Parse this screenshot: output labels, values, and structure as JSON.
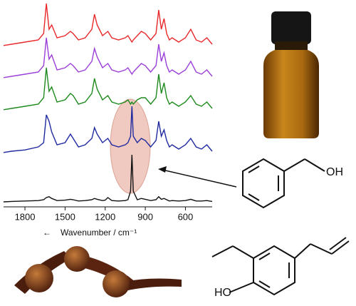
{
  "chart_data": {
    "type": "line",
    "x": [
      1960,
      1900,
      1800,
      1700,
      1660,
      1640,
      1620,
      1600,
      1560,
      1500,
      1460,
      1440,
      1400,
      1350,
      1300,
      1280,
      1260,
      1220,
      1200,
      1180,
      1150,
      1100,
      1050,
      1030,
      1010,
      1000,
      990,
      960,
      930,
      900,
      860,
      820,
      800,
      780,
      760,
      740,
      720,
      700,
      650,
      600,
      560,
      520,
      480,
      440,
      400
    ],
    "xlim": [
      1960,
      400
    ],
    "xticks": [
      1800,
      1500,
      1200,
      900,
      600
    ],
    "x_label": "Wavenumber / cm⁻¹",
    "series": [
      {
        "color": "#e8282a",
        "values": [
          2,
          5,
          10,
          15,
          30,
          100,
          40,
          50,
          20,
          25,
          35,
          30,
          15,
          20,
          40,
          75,
          50,
          25,
          30,
          35,
          20,
          15,
          20,
          25,
          15,
          10,
          15,
          25,
          35,
          30,
          15,
          30,
          85,
          40,
          65,
          30,
          15,
          20,
          10,
          20,
          40,
          15,
          10,
          20,
          5
        ]
      },
      {
        "color": "#9b3fd8",
        "values": [
          2,
          5,
          10,
          15,
          30,
          95,
          45,
          55,
          20,
          25,
          35,
          30,
          15,
          20,
          40,
          70,
          50,
          25,
          30,
          35,
          20,
          15,
          20,
          25,
          15,
          10,
          15,
          25,
          35,
          30,
          15,
          30,
          80,
          40,
          60,
          30,
          15,
          20,
          10,
          20,
          40,
          15,
          10,
          20,
          5
        ]
      },
      {
        "color": "#1e8a1e",
        "values": [
          2,
          5,
          10,
          15,
          30,
          100,
          45,
          55,
          20,
          25,
          40,
          35,
          15,
          20,
          40,
          75,
          50,
          25,
          30,
          35,
          20,
          15,
          20,
          25,
          15,
          20,
          15,
          25,
          30,
          30,
          15,
          30,
          85,
          40,
          65,
          30,
          15,
          20,
          10,
          20,
          35,
          15,
          10,
          20,
          5
        ]
      },
      {
        "color": "#1f2aa0",
        "values": [
          2,
          5,
          8,
          15,
          25,
          90,
          75,
          50,
          20,
          25,
          45,
          35,
          15,
          20,
          35,
          60,
          45,
          25,
          30,
          35,
          20,
          15,
          20,
          25,
          40,
          110,
          40,
          25,
          35,
          30,
          15,
          30,
          75,
          40,
          55,
          30,
          15,
          20,
          10,
          20,
          35,
          15,
          10,
          20,
          5
        ]
      },
      {
        "color": "#111111",
        "values": [
          0,
          1,
          2,
          3,
          5,
          10,
          12,
          8,
          3,
          4,
          6,
          5,
          2,
          3,
          5,
          8,
          6,
          3,
          4,
          10,
          3,
          2,
          3,
          5,
          25,
          110,
          25,
          5,
          8,
          6,
          3,
          5,
          12,
          6,
          8,
          5,
          2,
          3,
          2,
          3,
          6,
          2,
          2,
          3,
          1
        ]
      }
    ]
  },
  "structures": {
    "benzyl_alcohol_label": "OH",
    "eugenol_label": "HO"
  }
}
